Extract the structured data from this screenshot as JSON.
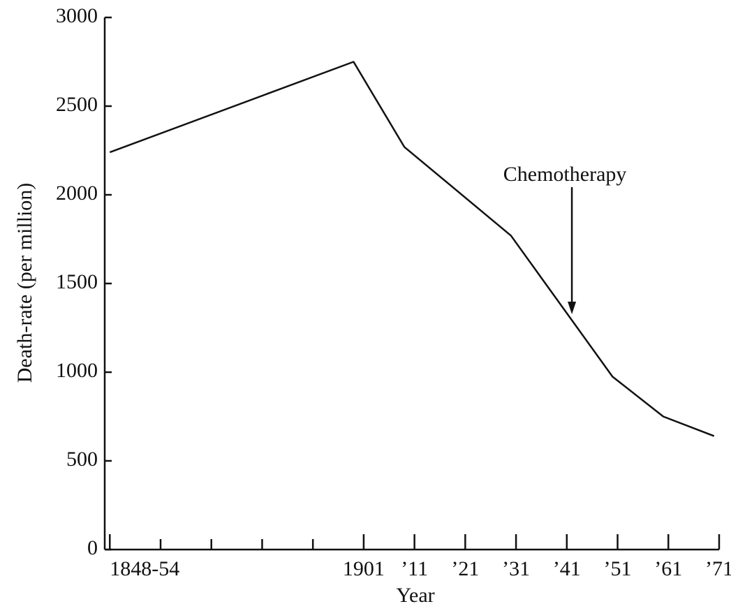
{
  "chart_data": {
    "type": "line",
    "x_label": "Year",
    "y_label": "Death-rate (per million)",
    "x": [
      1851,
      1899,
      1909,
      1930,
      1950,
      1960,
      1970
    ],
    "values": [
      2240,
      2750,
      2270,
      1770,
      975,
      750,
      640
    ],
    "color": "#111111",
    "xlim": [
      1850,
      1971
    ],
    "xticks": [
      {
        "value": 1851,
        "label": "1848-54"
      },
      1901,
      {
        "value": 1911,
        "label": "’11"
      },
      {
        "value": 1921,
        "label": "’21"
      },
      {
        "value": 1931,
        "label": "’31"
      },
      {
        "value": 1941,
        "label": "’41"
      },
      {
        "value": 1951,
        "label": "’51"
      },
      {
        "value": 1961,
        "label": "’61"
      },
      {
        "value": 1971,
        "label": "’71"
      }
    ],
    "xminor_ticks": [
      1861,
      1871,
      1881,
      1891
    ],
    "ylim": [
      0,
      3000
    ],
    "yticks": [
      0,
      500,
      1000,
      1500,
      2000,
      2500,
      3000
    ],
    "annotation": {
      "text": "Chemotherapy",
      "x": 1942
    },
    "grid": false
  }
}
